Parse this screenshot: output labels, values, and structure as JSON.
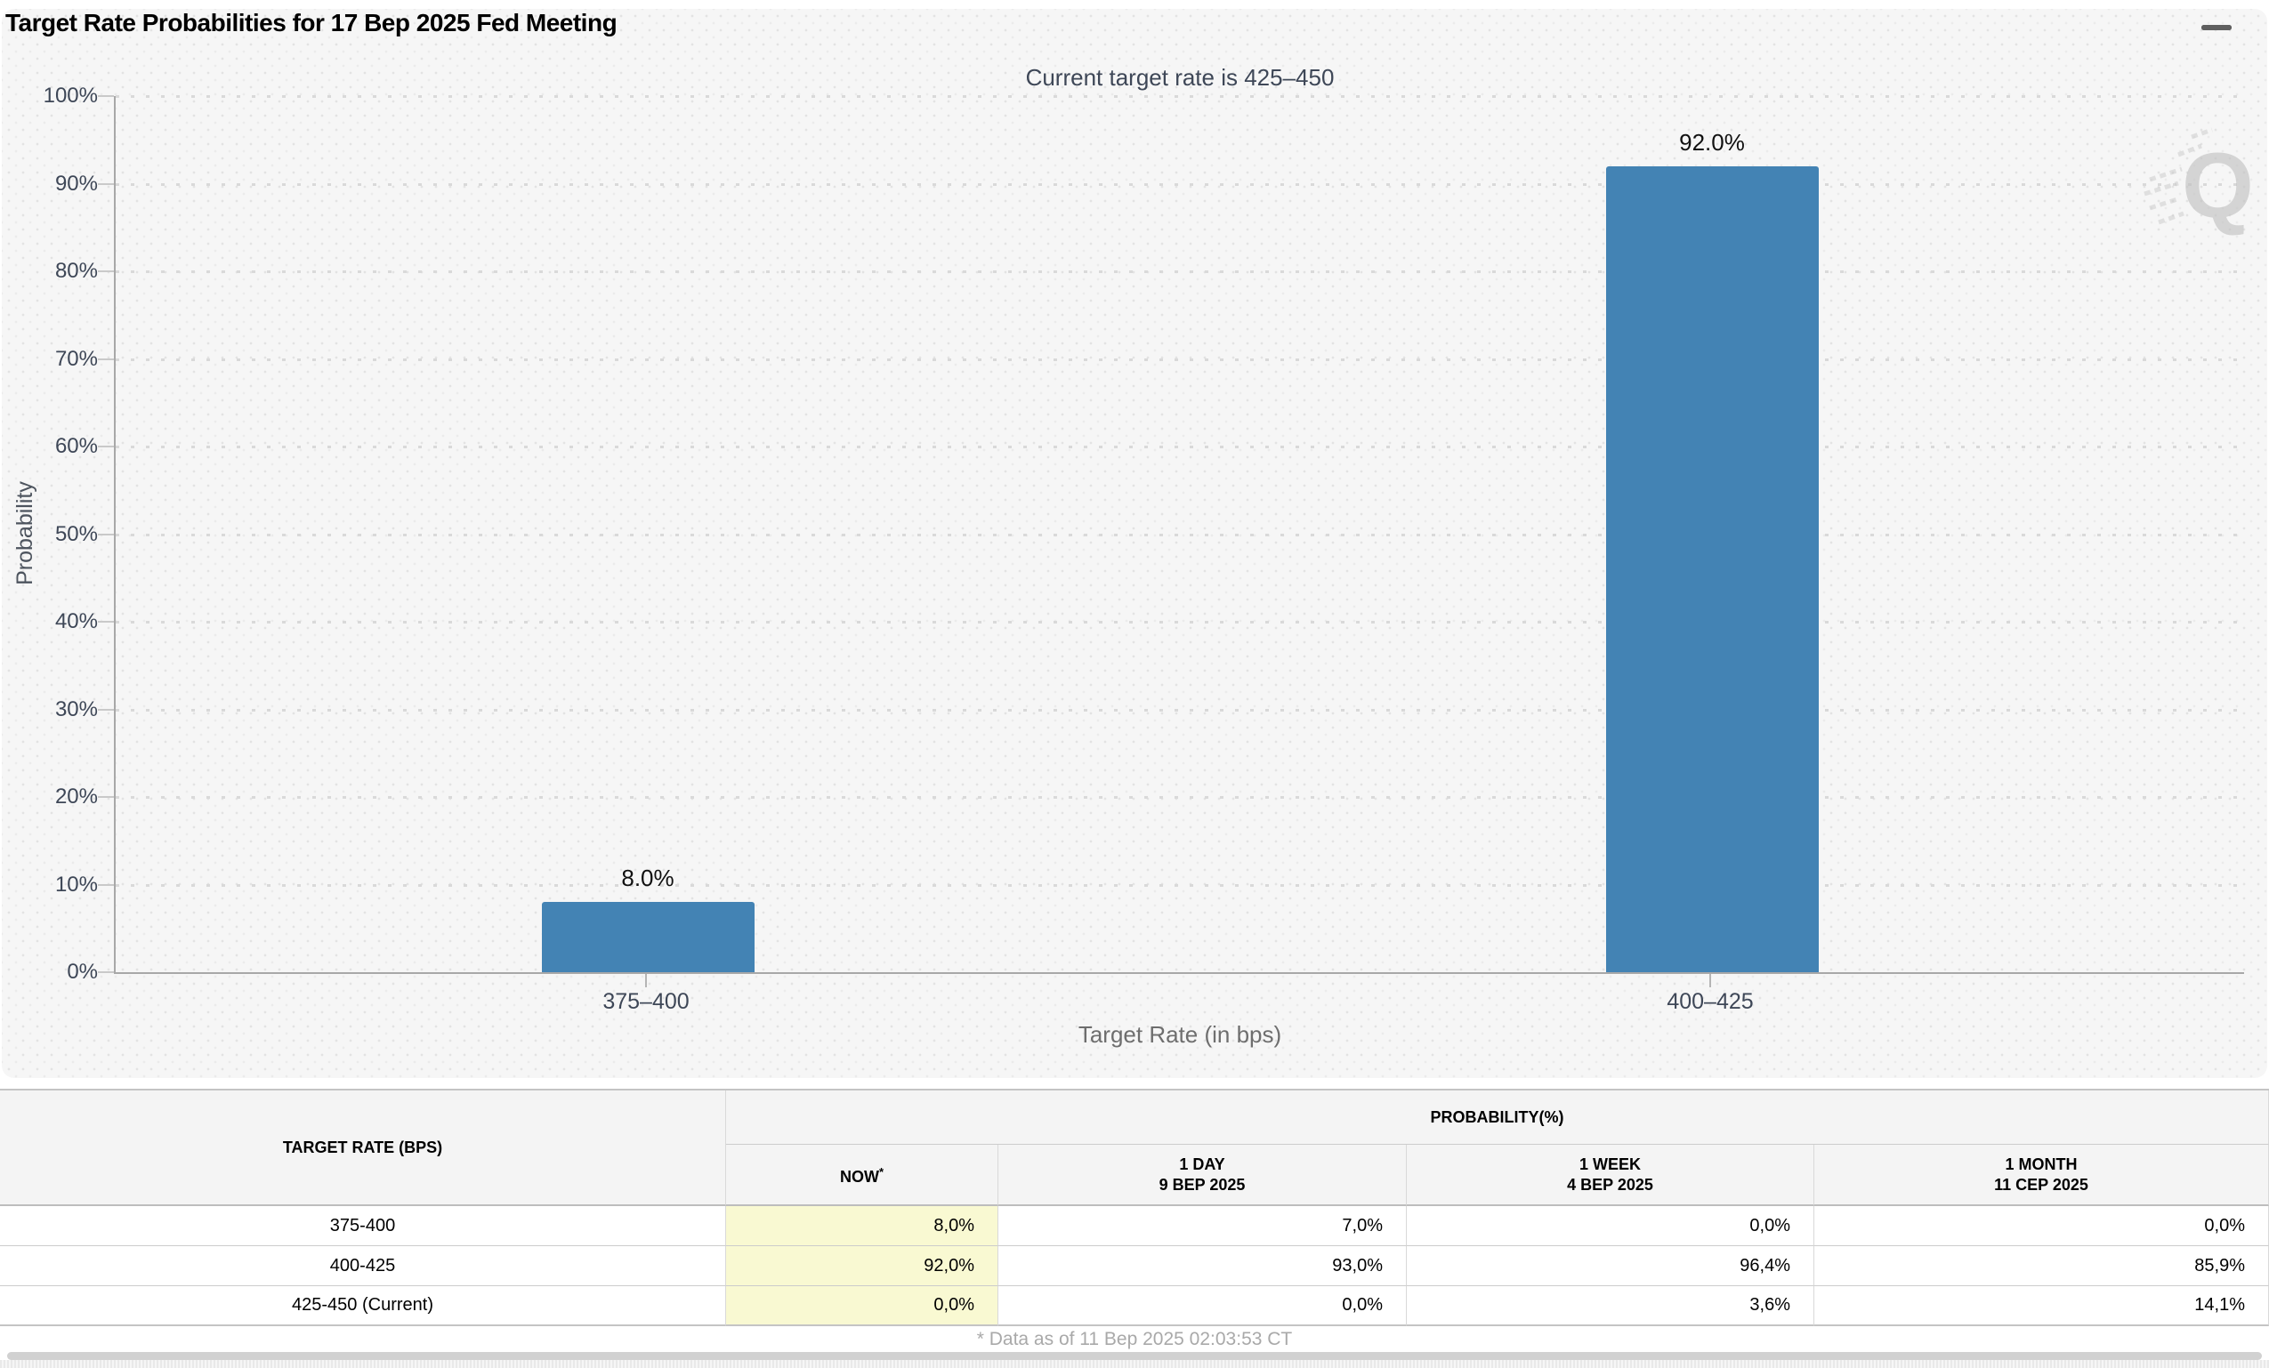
{
  "page": {
    "title": "Target Rate Probabilities for 17 Bep 2025 Fed Meeting"
  },
  "menu": {
    "icon": "hamburger-icon"
  },
  "chart": {
    "subtitle": "Current target rate is 425–450",
    "watermark_letter": "Q",
    "y_axis_title": "Probability",
    "x_axis_title": "Target Rate (in bps)",
    "y_ticks": [
      "0%",
      "10%",
      "20%",
      "30%",
      "40%",
      "50%",
      "60%",
      "70%",
      "80%",
      "90%",
      "100%"
    ]
  },
  "chart_data": {
    "type": "bar",
    "title": "Target Rate Probabilities for 17 Bep 2025 Fed Meeting",
    "subtitle": "Current target rate is 425–450",
    "categories": [
      "375–400",
      "400–425"
    ],
    "values": [
      8.0,
      92.0
    ],
    "value_labels": [
      "8.0%",
      "92.0%"
    ],
    "xlabel": "Target Rate (in bps)",
    "ylabel": "Probability",
    "ylim": [
      0,
      100
    ],
    "ytick_step": 10,
    "grid": "horizontal-dotted",
    "legend": "none",
    "bar_color": "#4383b4"
  },
  "table": {
    "headers": {
      "target_rate": "TARGET RATE (BPS)",
      "probability_group": "PROBABILITY(%)",
      "now": "NOW",
      "now_footnote_marker": "*",
      "day_label": "1 DAY",
      "day_date": "9 BEP 2025",
      "week_label": "1 WEEK",
      "week_date": "4 BEP 2025",
      "month_label": "1 MONTH",
      "month_date": "11 CEP 2025"
    },
    "rows": [
      {
        "rate": "375-400",
        "now": "8,0%",
        "day": "7,0%",
        "week": "0,0%",
        "month": "0,0%"
      },
      {
        "rate": "400-425",
        "now": "92,0%",
        "day": "93,0%",
        "week": "96,4%",
        "month": "85,9%"
      },
      {
        "rate": "425-450 (Current)",
        "now": "0,0%",
        "day": "0,0%",
        "week": "3,6%",
        "month": "14,1%"
      }
    ],
    "now_highlight_color": "#f9f9d2"
  },
  "footer": {
    "note": "* Data as of 11 Bep 2025 02:03:53 CT"
  }
}
